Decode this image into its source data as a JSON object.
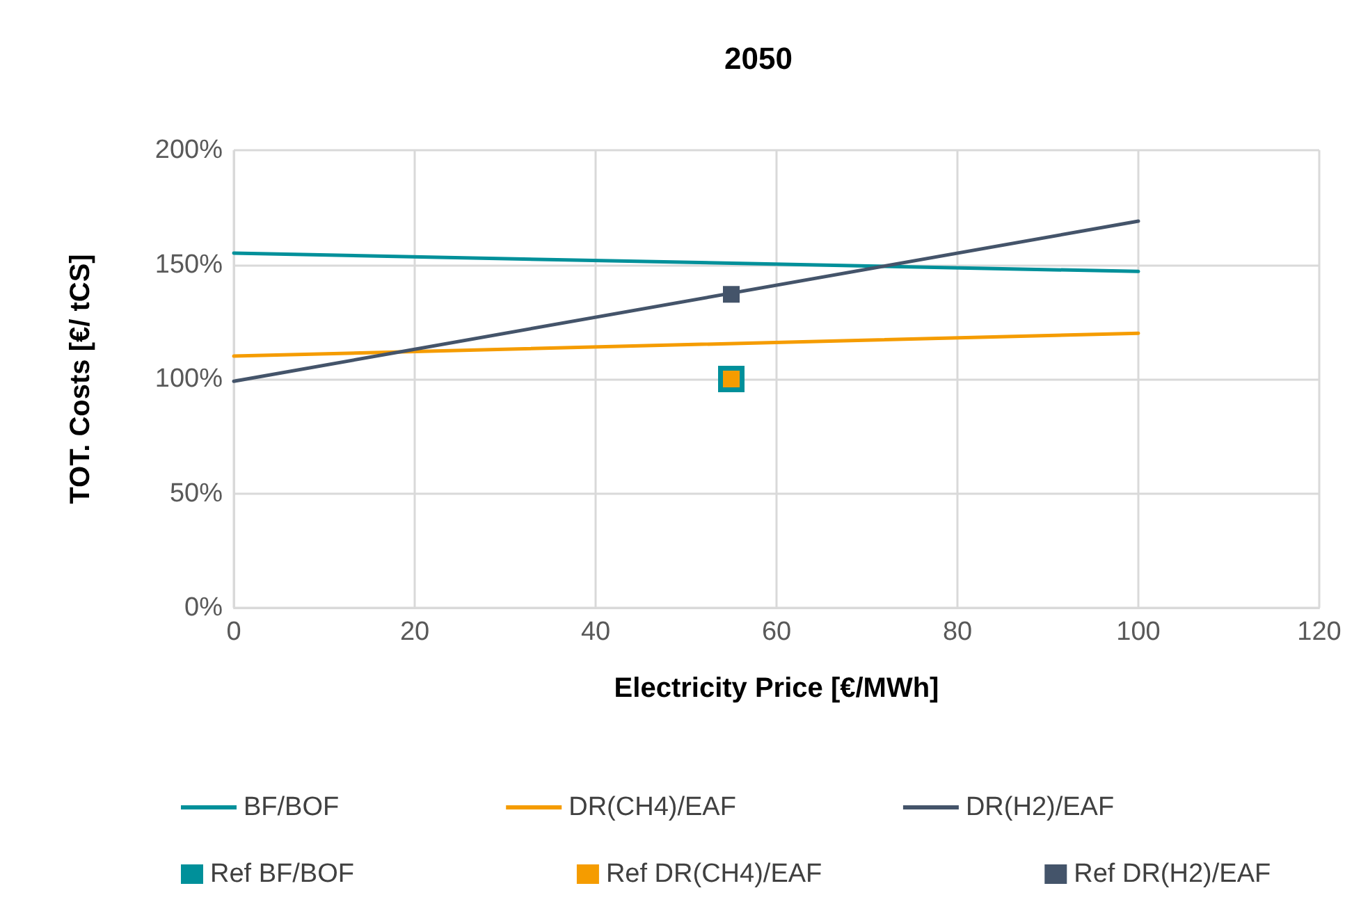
{
  "chart_data": {
    "type": "line",
    "title": "2050",
    "xlabel": "Electricity Price [€/MWh]",
    "ylabel": "TOT. Costs [€/ tCS]",
    "xlim": [
      0,
      120
    ],
    "xticks": [
      0,
      20,
      40,
      60,
      80,
      100,
      120
    ],
    "ylim": [
      0,
      200
    ],
    "yticks": [
      {
        "value": 0,
        "label": "0%"
      },
      {
        "value": 50,
        "label": "50%"
      },
      {
        "value": 100,
        "label": "100%"
      },
      {
        "value": 150,
        "label": "150%"
      },
      {
        "value": 200,
        "label": "200%"
      }
    ],
    "grid": true,
    "legend": "bottom",
    "marker": "none",
    "series": [
      {
        "name": "BF/BOF",
        "color": "#00909a",
        "x": [
          0,
          100
        ],
        "values": [
          155,
          147
        ]
      },
      {
        "name": "DR(CH4)/EAF",
        "color": "#f59c00",
        "x": [
          0,
          100
        ],
        "values": [
          110,
          120
        ]
      },
      {
        "name": "DR(H2)/EAF",
        "color": "#44546a",
        "x": [
          0,
          100
        ],
        "values": [
          99,
          169
        ]
      },
      {
        "name": "Ref BF/BOF",
        "type": "scatter",
        "marker": "square",
        "color": "#00909a",
        "x": [
          55
        ],
        "values": [
          100
        ]
      },
      {
        "name": "Ref DR(CH4)/EAF",
        "type": "scatter",
        "marker": "square",
        "color": "#f59c00",
        "x": [
          55
        ],
        "values": [
          100
        ]
      },
      {
        "name": "Ref DR(H2)/EAF",
        "type": "scatter",
        "marker": "square",
        "color": "#44546a",
        "x": [
          55
        ],
        "values": [
          137
        ]
      }
    ]
  }
}
